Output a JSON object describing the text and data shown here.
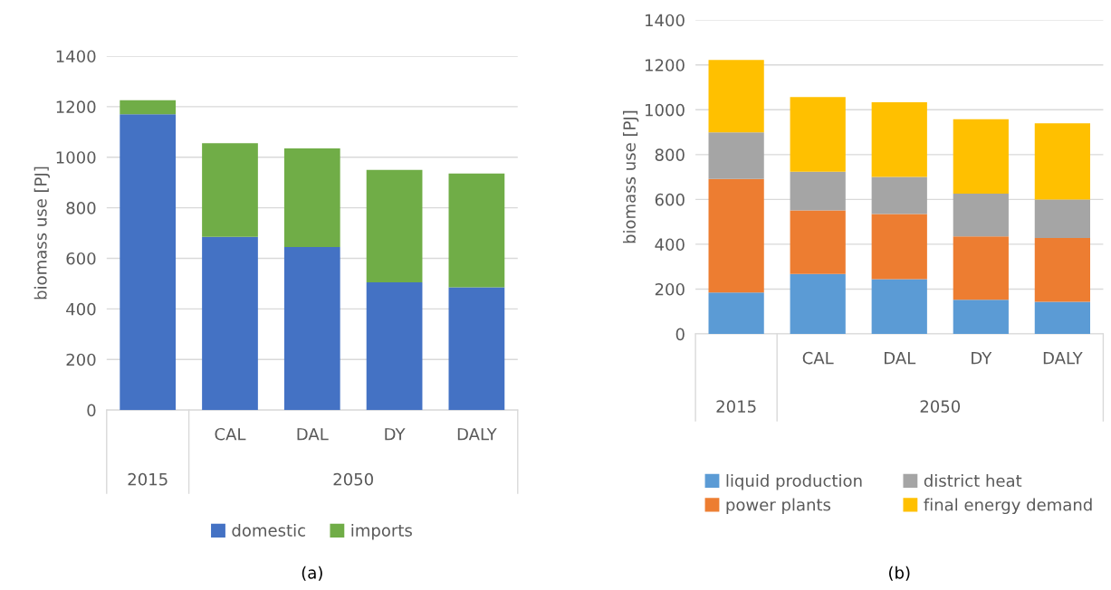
{
  "chart_data": [
    {
      "type": "bar",
      "stacked": true,
      "ylabel": "biomass use [PJ]",
      "categories": [
        null,
        "CAL",
        "DAL",
        "DY",
        "DALY"
      ],
      "ylim": [
        0,
        1400
      ],
      "yticks": [
        0,
        200,
        400,
        600,
        800,
        1000,
        1200,
        1400
      ],
      "grid": "y",
      "legend": "bottom",
      "series": [
        {
          "name": "domestic",
          "color": "#4472c4",
          "values": [
            1170,
            685,
            645,
            505,
            485
          ]
        },
        {
          "name": "imports",
          "color": "#70ad47",
          "values": [
            55,
            370,
            390,
            445,
            450
          ]
        }
      ],
      "annotations": [
        "2015",
        "2050",
        "(a)"
      ]
    },
    {
      "type": "bar",
      "stacked": true,
      "ylabel": "biomass use [PJ]",
      "categories": [
        null,
        "CAL",
        "DAL",
        "DY",
        "DALY"
      ],
      "ylim": [
        0,
        1400
      ],
      "yticks": [
        0,
        200,
        400,
        600,
        800,
        1000,
        1200,
        1400
      ],
      "grid": "y",
      "legend": "bottom",
      "series": [
        {
          "name": "liquid production",
          "color": "#5b9bd5",
          "values": [
            185,
            268,
            244,
            152,
            143
          ]
        },
        {
          "name": "power plants",
          "color": "#ed7d31",
          "values": [
            506,
            283,
            291,
            283,
            285
          ]
        },
        {
          "name": "district heat",
          "color": "#a5a5a5",
          "values": [
            208,
            173,
            165,
            191,
            171
          ]
        },
        {
          "name": "final energy demand",
          "color": "#ffc000",
          "values": [
            323,
            333,
            333,
            332,
            341
          ]
        }
      ],
      "annotations": [
        "2015",
        "2050",
        "(b)"
      ]
    }
  ]
}
